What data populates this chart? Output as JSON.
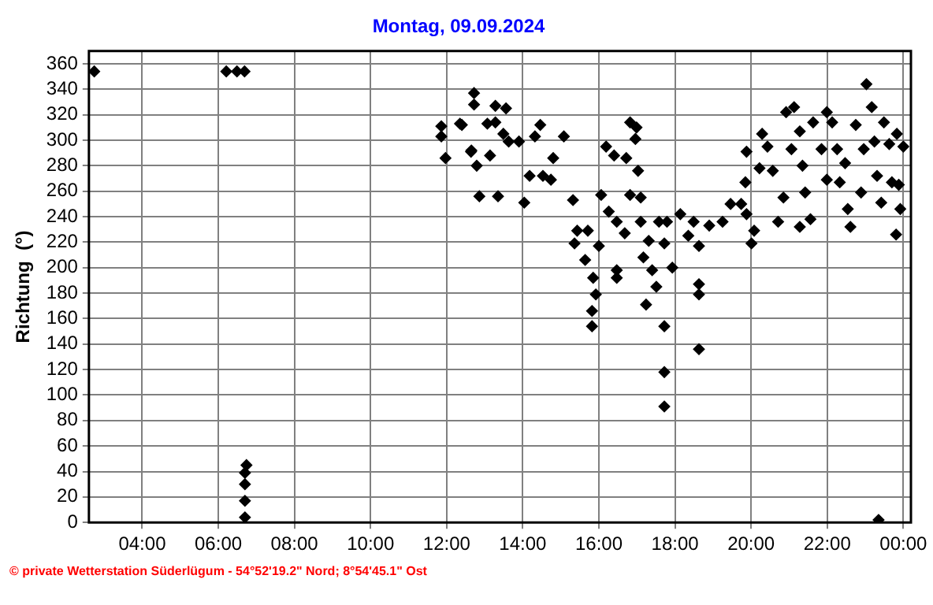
{
  "chart_data": {
    "type": "scatter",
    "title": "Montag, 09.09.2024",
    "ylabel": "Richtung  (°)",
    "annotations": [
      "© private Wetterstation Süderlügum - 54°52'19.2\" Nord; 8°54'45.1\" Ost"
    ],
    "xlim": [
      2.6,
      24.2
    ],
    "xticks": [
      {
        "value": 4,
        "label": "04:00"
      },
      {
        "value": 6,
        "label": "06:00"
      },
      {
        "value": 8,
        "label": "08:00"
      },
      {
        "value": 10,
        "label": "10:00"
      },
      {
        "value": 12,
        "label": "12:00"
      },
      {
        "value": 14,
        "label": "14:00"
      },
      {
        "value": 16,
        "label": "16:00"
      },
      {
        "value": 18,
        "label": "18:00"
      },
      {
        "value": 20,
        "label": "20:00"
      },
      {
        "value": 22,
        "label": "22:00"
      },
      {
        "value": 24,
        "label": "00:00"
      }
    ],
    "ylim": [
      0,
      370
    ],
    "yticks": [
      0,
      20,
      40,
      60,
      80,
      100,
      120,
      140,
      160,
      180,
      200,
      220,
      240,
      260,
      280,
      300,
      320,
      340,
      360
    ],
    "grid": true,
    "marker": "diamond",
    "series": [
      {
        "color": "#000000",
        "x": [
          2.74,
          6.21,
          6.49,
          6.69,
          6.74,
          6.7,
          6.7,
          6.7,
          6.7,
          11.86,
          11.86,
          11.97,
          12.4,
          12.64,
          12.35,
          12.72,
          12.72,
          12.65,
          12.79,
          12.86,
          13.35,
          13.28,
          13.56,
          13.07,
          13.28,
          13.49,
          13.63,
          13.9,
          13.14,
          14.04,
          14.18,
          14.32,
          14.46,
          14.53,
          14.74,
          14.8,
          15.08,
          15.32,
          15.43,
          15.36,
          15.71,
          15.64,
          15.85,
          15.92,
          15.82,
          15.82,
          16.0,
          16.19,
          16.4,
          16.06,
          16.26,
          16.47,
          16.47,
          16.47,
          16.68,
          16.82,
          16.82,
          16.99,
          16.96,
          17.03,
          16.72,
          17.1,
          17.1,
          17.17,
          17.31,
          17.4,
          17.51,
          17.24,
          17.58,
          17.72,
          17.79,
          17.93,
          17.72,
          17.72,
          17.72,
          18.14,
          18.35,
          18.49,
          18.63,
          18.63,
          18.63,
          18.63,
          18.9,
          19.25,
          19.46,
          19.74,
          19.88,
          19.85,
          19.88,
          20.01,
          20.08,
          20.22,
          20.29,
          20.43,
          20.57,
          20.71,
          20.85,
          20.92,
          21.13,
          21.06,
          21.28,
          21.35,
          21.28,
          21.42,
          21.56,
          21.63,
          21.85,
          21.99,
          21.99,
          22.13,
          22.26,
          22.33,
          22.47,
          22.54,
          22.61,
          22.75,
          22.89,
          22.96,
          23.03,
          23.17,
          23.24,
          23.31,
          23.42,
          23.49,
          23.35,
          23.63,
          23.7,
          23.83,
          23.88,
          23.92,
          23.81,
          24.0
        ],
        "values": [
          354,
          354,
          354,
          354,
          45,
          39,
          30,
          17,
          4,
          311,
          303,
          286,
          312,
          291,
          313,
          337,
          328,
          292,
          280,
          256,
          256,
          327,
          325,
          313,
          314,
          305,
          299,
          299,
          288,
          251,
          272,
          303,
          312,
          272,
          269,
          286,
          303,
          253,
          229,
          219,
          229,
          206,
          192,
          179,
          166,
          154,
          217,
          295,
          288,
          257,
          244,
          236,
          198,
          192,
          227,
          257,
          314,
          310,
          301,
          276,
          286,
          255,
          236,
          208,
          221,
          198,
          185,
          171,
          236,
          219,
          236,
          200,
          154,
          118,
          91,
          242,
          225,
          236,
          217,
          187,
          179,
          136,
          233,
          236,
          250,
          250,
          242,
          267,
          291,
          219,
          229,
          278,
          305,
          295,
          276,
          236,
          255,
          322,
          326,
          293,
          307,
          280,
          232,
          259,
          238,
          314,
          293,
          322,
          269,
          314,
          293,
          267,
          282,
          246,
          232,
          312,
          259,
          293,
          344,
          326,
          299,
          272,
          251,
          314,
          2,
          297,
          267,
          305,
          265,
          246,
          226,
          295
        ]
      }
    ]
  }
}
